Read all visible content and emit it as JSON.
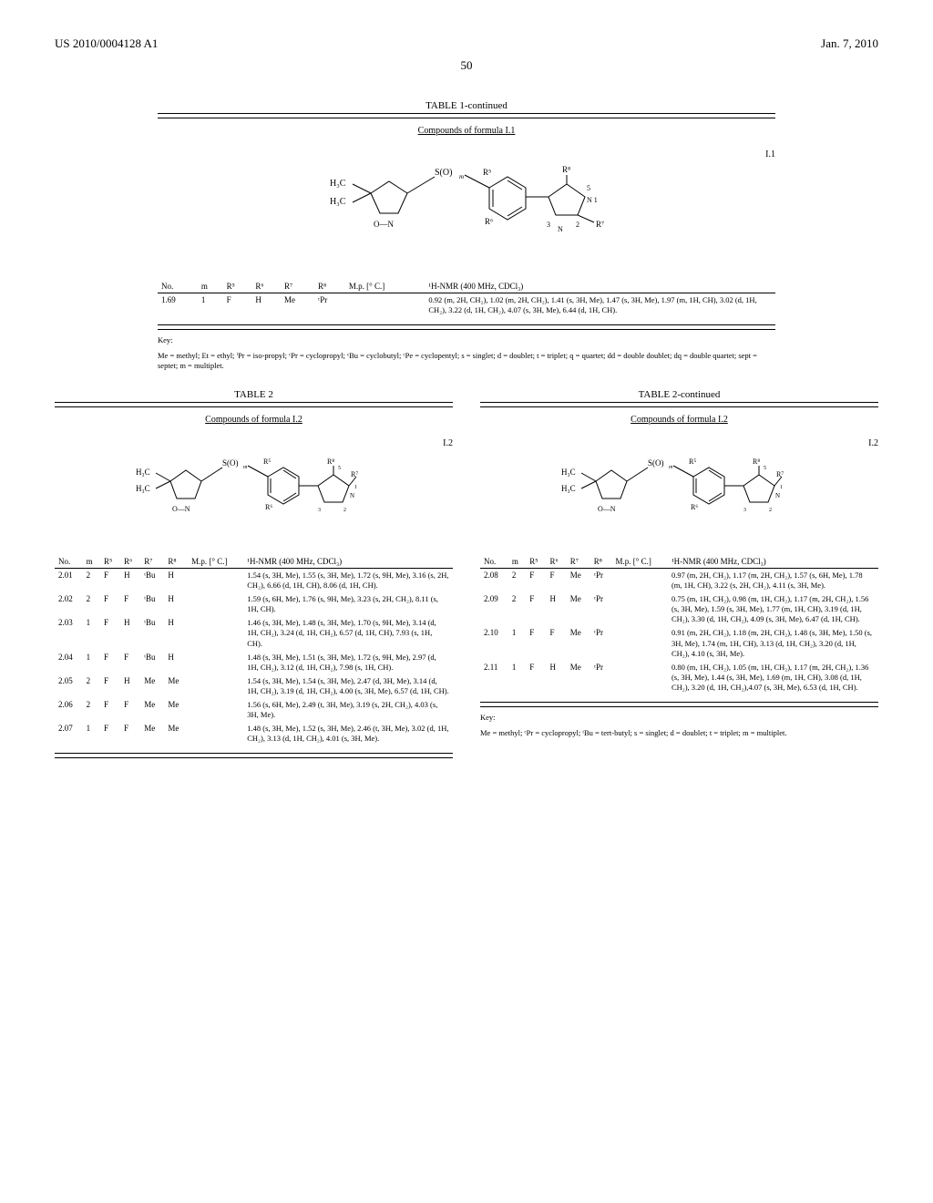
{
  "header": {
    "patent_number": "US 2010/0004128 A1",
    "date": "Jan. 7, 2010",
    "page": "50"
  },
  "table1": {
    "title": "TABLE 1-continued",
    "subtitle": "Compounds of formula I.1",
    "formula_label": "I.1",
    "structure_parts": {
      "left_top": "H₃C",
      "left_bot": "H₃C",
      "so": "S(O)",
      "so_sub": "m",
      "r5": "R⁵",
      "r6": "R⁶",
      "r8": "R⁸",
      "r7": "R⁷",
      "pos5": "5",
      "pos1": "N 1",
      "pos2": "2",
      "pos3": "3",
      "o_n": "O—N"
    },
    "columns": [
      "No.",
      "m",
      "R⁵",
      "R⁶",
      "R⁷",
      "R⁸",
      "M.p. [° C.]",
      "¹H-NMR (400 MHz, CDCl₃)"
    ],
    "rows": [
      {
        "no": "1.69",
        "m": "1",
        "r5": "F",
        "r6": "H",
        "r7": "Me",
        "r8": "ᶜPr",
        "mp": "",
        "nmr": "0.92 (m, 2H, CH₂), 1.02 (m, 2H, CH₂), 1.41 (s, 3H, Me), 1.47 (s, 3H, Me), 1.97 (m, 1H, CH), 3.02 (d, 1H, CH₂), 3.22 (d, 1H, CH₂), 4.07 (s, 3H, Me), 6.44 (d, 1H, CH)."
      }
    ],
    "key": "Me = methyl; Et = ethyl; ⁱPr = iso-propyl; ᶜPr = cyclopropyl; ᶜBu = cyclobutyl; ᶜPe = cyclopentyl; s = singlet; d = doublet; t = triplet; q = quartet; dd = double doublet; dq = double quartet; sept = septet; m = multiplet."
  },
  "table2": {
    "title": "TABLE 2",
    "title_cont": "TABLE 2-continued",
    "subtitle": "Compounds of formula I.2",
    "formula_label": "I.2",
    "columns": [
      "No.",
      "m",
      "R⁵",
      "R⁶",
      "R⁷",
      "R⁸",
      "M.p. [° C.]",
      "¹H-NMR (400 MHz, CDCl₃)"
    ],
    "left_rows": [
      {
        "no": "2.01",
        "m": "2",
        "r5": "F",
        "r6": "H",
        "r7": "ᵗBu",
        "r8": "H",
        "mp": "",
        "nmr": "1.54 (s, 3H, Me), 1.55 (s, 3H, Me), 1.72 (s, 9H, Me), 3.16 (s, 2H, CH₂), 6.66 (d, 1H, CH), 8.06 (d, 1H, CH)."
      },
      {
        "no": "2.02",
        "m": "2",
        "r5": "F",
        "r6": "F",
        "r7": "ᵗBu",
        "r8": "H",
        "mp": "",
        "nmr": "1.59 (s, 6H, Me), 1.76 (s, 9H, Me), 3.23 (s, 2H, CH₂), 8.11 (s, 1H, CH)."
      },
      {
        "no": "2.03",
        "m": "1",
        "r5": "F",
        "r6": "H",
        "r7": "ᵗBu",
        "r8": "H",
        "mp": "",
        "nmr": "1.46 (s, 3H, Me), 1.48 (s, 3H, Me), 1.70 (s, 9H, Me), 3.14 (d, 1H, CH₂), 3.24 (d, 1H, CH₂), 6.57 (d, 1H, CH), 7.93 (s, 1H, CH)."
      },
      {
        "no": "2.04",
        "m": "1",
        "r5": "F",
        "r6": "F",
        "r7": "ᵗBu",
        "r8": "H",
        "mp": "",
        "nmr": "1.48 (s, 3H, Me), 1.51 (s, 3H, Me), 1.72 (s, 9H, Me), 2.97 (d, 1H, CH₂), 3.12 (d, 1H, CH₂), 7.98 (s, 1H, CH)."
      },
      {
        "no": "2.05",
        "m": "2",
        "r5": "F",
        "r6": "H",
        "r7": "Me",
        "r8": "Me",
        "mp": "",
        "nmr": "1.54 (s, 3H, Me), 1.54 (s, 3H, Me), 2.47 (d, 3H, Me), 3.14 (d, 1H, CH₂), 3.19 (d, 1H, CH₂), 4.00 (s, 3H, Me), 6.57 (d, 1H, CH)."
      },
      {
        "no": "2.06",
        "m": "2",
        "r5": "F",
        "r6": "F",
        "r7": "Me",
        "r8": "Me",
        "mp": "",
        "nmr": "1.56 (s, 6H, Me), 2.49 (t, 3H, Me), 3.19 (s, 2H, CH₂), 4.03 (s, 3H, Me)."
      },
      {
        "no": "2.07",
        "m": "1",
        "r5": "F",
        "r6": "F",
        "r7": "Me",
        "r8": "Me",
        "mp": "",
        "nmr": "1.48 (s, 3H, Me), 1.52 (s, 3H, Me), 2.46 (t, 3H, Me), 3.02 (d, 1H, CH₂), 3.13 (d, 1H, CH₂), 4.01 (s, 3H, Me)."
      }
    ],
    "right_rows": [
      {
        "no": "2.08",
        "m": "2",
        "r5": "F",
        "r6": "F",
        "r7": "Me",
        "r8": "ᶜPr",
        "mp": "",
        "nmr": "0.97 (m, 2H, CH₂), 1.17 (m, 2H, CH₂), 1.57 (s, 6H, Me), 1.78 (m, 1H, CH), 3.22 (s, 2H, CH₂), 4.11 (s, 3H, Me)."
      },
      {
        "no": "2.09",
        "m": "2",
        "r5": "F",
        "r6": "H",
        "r7": "Me",
        "r8": "ᶜPr",
        "mp": "",
        "nmr": "0.75 (m, 1H, CH₂), 0.98 (m, 1H, CH₂), 1.17 (m, 2H, CH₂), 1.56 (s, 3H, Me), 1.59 (s, 3H, Me), 1.77 (m, 1H, CH), 3.19 (d, 1H, CH₂), 3.30 (d, 1H, CH₂), 4.09 (s, 3H, Me), 6.47 (d, 1H, CH)."
      },
      {
        "no": "2.10",
        "m": "1",
        "r5": "F",
        "r6": "F",
        "r7": "Me",
        "r8": "ᶜPr",
        "mp": "",
        "nmr": "0.91 (m, 2H, CH₂), 1.18 (m, 2H, CH₂), 1.48 (s, 3H, Me), 1.50 (s, 3H, Me), 1.74 (m, 1H, CH), 3.13 (d, 1H, CH₂), 3.20 (d, 1H, CH₂), 4.10 (s, 3H, Me)."
      },
      {
        "no": "2.11",
        "m": "1",
        "r5": "F",
        "r6": "H",
        "r7": "Me",
        "r8": "ᶜPr",
        "mp": "",
        "nmr": "0.80 (m, 1H, CH₂), 1.05 (m, 1H, CH₂), 1.17 (m, 2H, CH₂), 1.36 (s, 3H, Me), 1.44 (s, 3H, Me), 1.69 (m, 1H, CH), 3.08 (d, 1H, CH₂), 3.20 (d, 1H, CH₂),4.07 (s, 3H, Me), 6.53 (d, 1H, CH)."
      }
    ],
    "key": "Me = methyl; ᶜPr = cyclopropyl; ᵗBu = tert-butyl; s = singlet; d = doublet; t = triplet; m = multiplet."
  }
}
